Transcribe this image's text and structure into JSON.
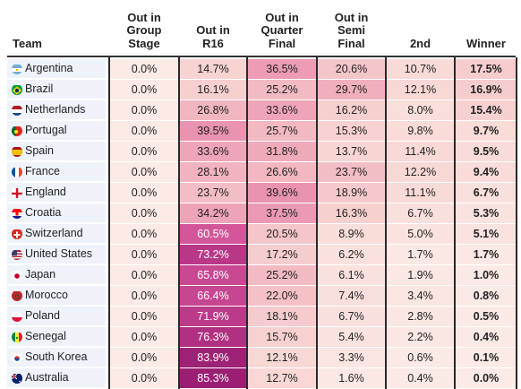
{
  "chart_data": {
    "type": "table",
    "columns": [
      {
        "key": "team",
        "label": "Team"
      },
      {
        "key": "group",
        "label": "Out in\nGroup\nStage"
      },
      {
        "key": "r16",
        "label": "Out in\nR16"
      },
      {
        "key": "qf",
        "label": "Out in\nQuarter\nFinal"
      },
      {
        "key": "sf",
        "label": "Out in\nSemi\nFinal"
      },
      {
        "key": "second",
        "label": "2nd"
      },
      {
        "key": "winner",
        "label": "Winner"
      }
    ],
    "rows": [
      {
        "team": "Argentina",
        "values": [
          "0.0%",
          "14.7%",
          "36.5%",
          "20.6%",
          "10.7%",
          "17.5%"
        ]
      },
      {
        "team": "Brazil",
        "values": [
          "0.0%",
          "16.1%",
          "25.2%",
          "29.7%",
          "12.1%",
          "16.9%"
        ]
      },
      {
        "team": "Netherlands",
        "values": [
          "0.0%",
          "26.8%",
          "33.6%",
          "16.2%",
          "8.0%",
          "15.4%"
        ]
      },
      {
        "team": "Portugal",
        "values": [
          "0.0%",
          "39.5%",
          "25.7%",
          "15.3%",
          "9.8%",
          "9.7%"
        ]
      },
      {
        "team": "Spain",
        "values": [
          "0.0%",
          "33.6%",
          "31.8%",
          "13.7%",
          "11.4%",
          "9.5%"
        ]
      },
      {
        "team": "France",
        "values": [
          "0.0%",
          "28.1%",
          "26.6%",
          "23.7%",
          "12.2%",
          "9.4%"
        ]
      },
      {
        "team": "England",
        "values": [
          "0.0%",
          "23.7%",
          "39.6%",
          "18.9%",
          "11.1%",
          "6.7%"
        ]
      },
      {
        "team": "Croatia",
        "values": [
          "0.0%",
          "34.2%",
          "37.5%",
          "16.3%",
          "6.7%",
          "5.3%"
        ]
      },
      {
        "team": "Switzerland",
        "values": [
          "0.0%",
          "60.5%",
          "20.5%",
          "8.9%",
          "5.0%",
          "5.1%"
        ]
      },
      {
        "team": "United States",
        "values": [
          "0.0%",
          "73.2%",
          "17.2%",
          "6.2%",
          "1.7%",
          "1.7%"
        ]
      },
      {
        "team": "Japan",
        "values": [
          "0.0%",
          "65.8%",
          "25.2%",
          "6.1%",
          "1.9%",
          "1.0%"
        ]
      },
      {
        "team": "Morocco",
        "values": [
          "0.0%",
          "66.4%",
          "22.0%",
          "7.4%",
          "3.4%",
          "0.8%"
        ]
      },
      {
        "team": "Poland",
        "values": [
          "0.0%",
          "71.9%",
          "18.1%",
          "6.7%",
          "2.8%",
          "0.5%"
        ]
      },
      {
        "team": "Senegal",
        "values": [
          "0.0%",
          "76.3%",
          "15.7%",
          "5.4%",
          "2.2%",
          "0.4%"
        ]
      },
      {
        "team": "South Korea",
        "values": [
          "0.0%",
          "83.9%",
          "12.1%",
          "3.3%",
          "0.6%",
          "0.1%"
        ]
      },
      {
        "team": "Australia",
        "values": [
          "0.0%",
          "85.3%",
          "12.7%",
          "1.6%",
          "0.4%",
          "0.0%"
        ]
      }
    ]
  },
  "flags": {
    "Argentina": "argentina-flag-icon",
    "Brazil": "brazil-flag-icon",
    "Netherlands": "netherlands-flag-icon",
    "Portugal": "portugal-flag-icon",
    "Spain": "spain-flag-icon",
    "France": "france-flag-icon",
    "England": "england-flag-icon",
    "Croatia": "croatia-flag-icon",
    "Switzerland": "switzerland-flag-icon",
    "United States": "united-states-flag-icon",
    "Japan": "japan-flag-icon",
    "Morocco": "morocco-flag-icon",
    "Poland": "poland-flag-icon",
    "Senegal": "senegal-flag-icon",
    "South Korea": "south-korea-flag-icon",
    "Australia": "australia-flag-icon"
  },
  "colors": {
    "heat_low": "#fbeae6",
    "heat_high": "#a8247b",
    "team_column_bg": "#eef3f9",
    "rule": "#2a2a2a",
    "text": "#222222"
  }
}
